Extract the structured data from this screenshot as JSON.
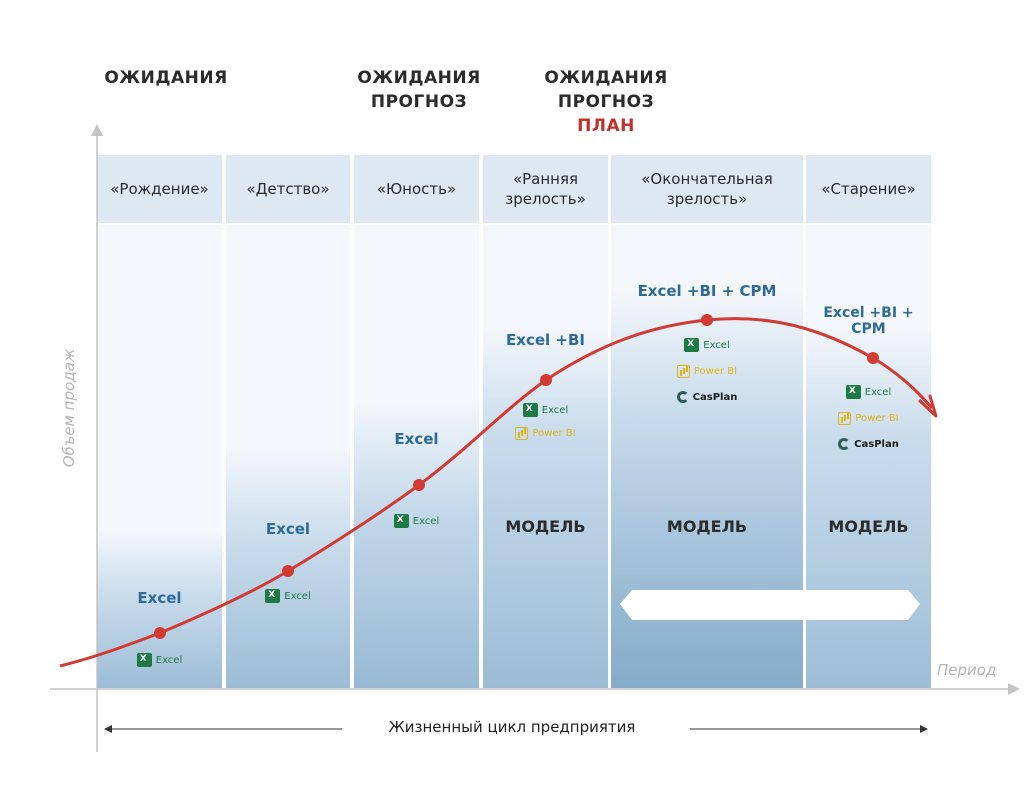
{
  "top_labels": [
    {
      "lines": [
        "ОЖИДАНИЯ"
      ],
      "plan": ""
    },
    {
      "lines": [
        "ОЖИДАНИЯ",
        "ПРОГНОЗ"
      ],
      "plan": ""
    },
    {
      "lines": [
        "ОЖИДАНИЯ",
        "ПРОГНОЗ"
      ],
      "plan": "ПЛАН"
    }
  ],
  "stages": [
    {
      "head": "«Рождение»",
      "tool": "Excel",
      "logos": [
        "Excel"
      ],
      "model": ""
    },
    {
      "head": "«Детство»",
      "tool": "Excel",
      "logos": [
        "Excel"
      ],
      "model": ""
    },
    {
      "head": "«Юность»",
      "tool": "Excel",
      "logos": [
        "Excel"
      ],
      "model": ""
    },
    {
      "head": "«Ранняя зрелость»",
      "tool": "Excel +BI",
      "logos": [
        "Excel",
        "Power BI"
      ],
      "model": "МОДЕЛЬ"
    },
    {
      "head": "«Окончательная зрелость»",
      "tool": "Excel +BI + CPM",
      "logos": [
        "Excel",
        "Power BI",
        "CasPlan"
      ],
      "model": "МОДЕЛЬ"
    },
    {
      "head": "«Старение»",
      "tool": "Excel +BI + CPM",
      "logos": [
        "Excel",
        "Power BI",
        "CasPlan"
      ],
      "model": "МОДЕЛЬ"
    }
  ],
  "axes": {
    "y_label": "Объем продаж",
    "x_label": "Период"
  },
  "bottom_label": "Жизненный цикл предприятия",
  "colors": {
    "curve": "#d23a34",
    "header_bg": "#dde8f3",
    "tool_text": "#2e6b96",
    "excel": "#1e7a45",
    "powerbi": "#e2b414"
  }
}
